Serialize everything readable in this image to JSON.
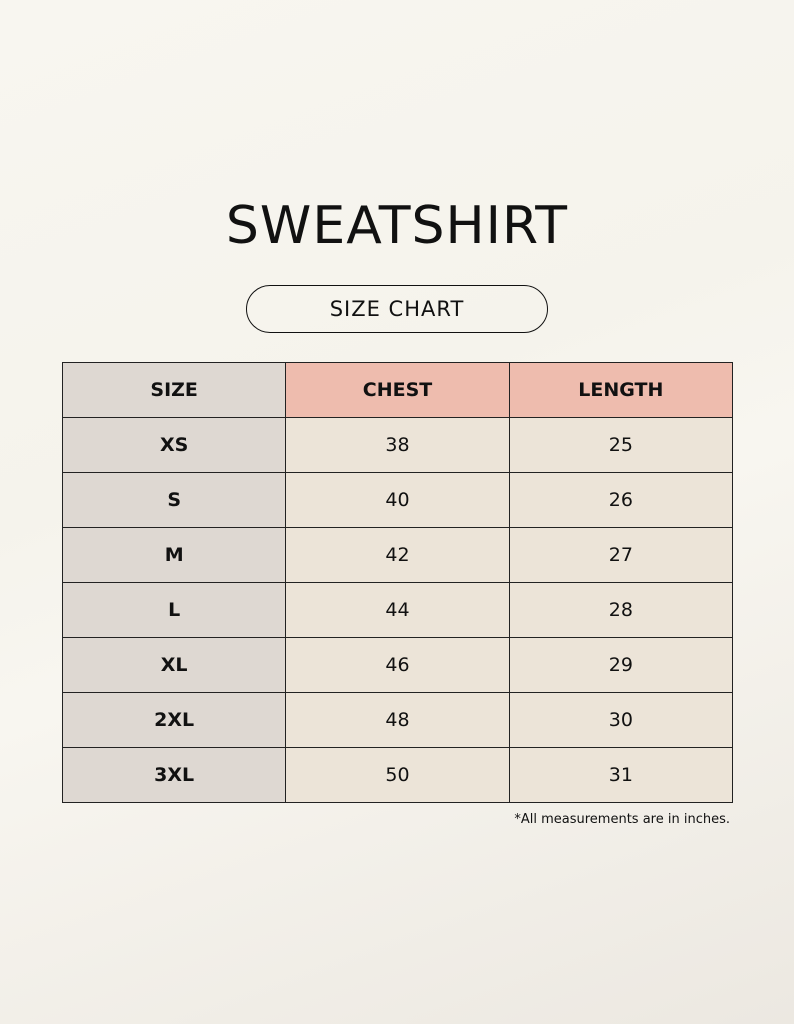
{
  "title": "SWEATSHIRT",
  "subtitle": "SIZE CHART",
  "table": {
    "header": [
      "SIZE",
      "CHEST",
      "LENGTH"
    ],
    "rows": [
      [
        "XS",
        38,
        25
      ],
      [
        "S",
        40,
        26
      ],
      [
        "M",
        42,
        27
      ],
      [
        "L",
        44,
        28
      ],
      [
        "XL",
        46,
        29
      ],
      [
        "2XL",
        48,
        30
      ],
      [
        "3XL",
        50,
        31
      ]
    ]
  },
  "note": "*All measurements are in inches."
}
